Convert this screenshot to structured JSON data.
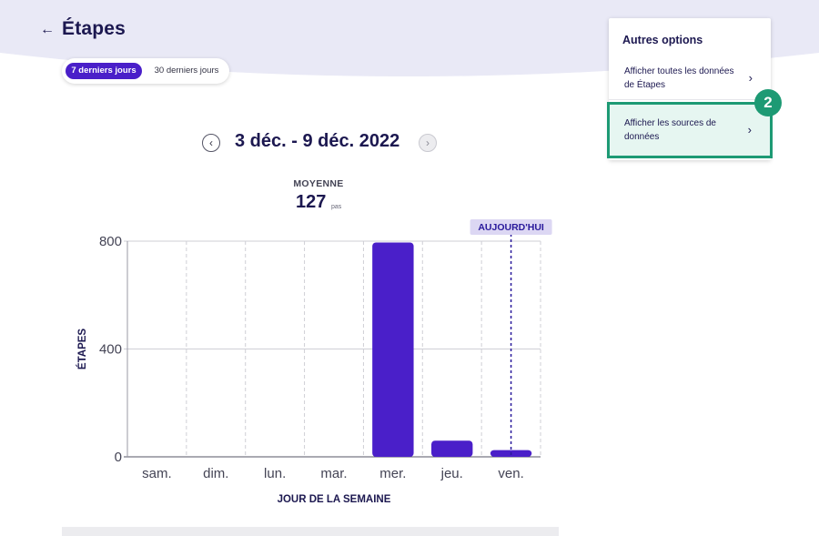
{
  "header": {
    "back_icon": "arrow-left-icon",
    "title": "Étapes"
  },
  "range_toggle": {
    "options": [
      {
        "label": "7 derniers jours",
        "selected": true
      },
      {
        "label": "30 derniers jours",
        "selected": false
      }
    ]
  },
  "date_nav": {
    "prev_icon": "chevron-left-icon",
    "next_icon": "chevron-right-icon",
    "range": "3 déc. - 9 déc. 2022"
  },
  "average": {
    "label": "MOYENNE",
    "value": "127",
    "unit": "pas"
  },
  "chart_data": {
    "type": "bar",
    "categories": [
      "sam.",
      "dim.",
      "lun.",
      "mar.",
      "mer.",
      "jeu.",
      "ven."
    ],
    "values": [
      0,
      0,
      0,
      0,
      795,
      60,
      25
    ],
    "ylabel": "ÉTAPES",
    "xlabel": "JOUR DE LA SEMAINE",
    "ylim": [
      0,
      800
    ],
    "yticks": [
      0,
      400,
      800
    ],
    "today_marker": {
      "category": "ven.",
      "label": "AUJOURD'HUI"
    },
    "grid": true,
    "colors": {
      "bar": "#4a1fc9",
      "marker": "#2a1a9c",
      "marker_label_bg": "#dcd7f3"
    }
  },
  "options_panel": {
    "title": "Autres options",
    "items": [
      {
        "label": "Afficher toutes les données de Étapes",
        "icon": "chevron-right-icon"
      },
      {
        "label": "Afficher les sources de données",
        "icon": "chevron-right-icon",
        "highlighted": true
      }
    ]
  },
  "step_badge": "2",
  "colors": {
    "accent": "#4a1fc9",
    "highlight": "#1d9a74",
    "header_bg": "#e9e9f6",
    "text": "#1c1850"
  }
}
